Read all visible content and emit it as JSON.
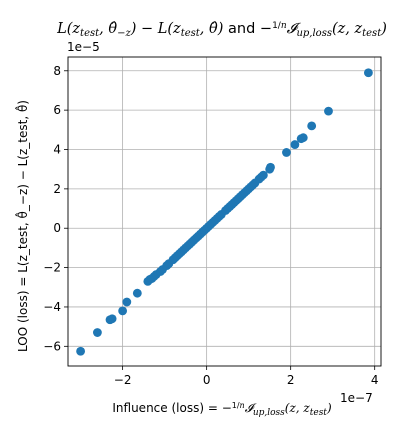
{
  "chart_data": {
    "type": "scatter",
    "title_parts": {
      "lhs": "L(z",
      "sub_test": "test",
      "theta_minus_z": ", θ̂",
      "minus_z_sub": "−z",
      "middle": ") − L(z",
      "theta": ", θ̂)",
      "and": " and ",
      "neg_frac": "−",
      "frac_num": "1",
      "frac_den": "n",
      "influence": "𝓘",
      "inf_sub": "up,loss",
      "tail": "(z, z",
      "close": ")"
    },
    "xlabel_parts": {
      "prefix": "Influence (loss) = −",
      "frac_num": "1",
      "frac_den": "n",
      "influence": "𝓘",
      "inf_sub": "up,loss",
      "args": "(z, z",
      "args_sub": "test",
      "close": ")"
    },
    "ylabel": "LOO (loss) = L(z_test, θ̂_−z) − L(z_test, θ̂)",
    "x_offset_label": "1e−7",
    "y_offset_label": "1e−5",
    "x_scale": 1e-07,
    "y_scale": 1e-05,
    "xlim": [
      -3.3,
      4.15
    ],
    "ylim": [
      -7.0,
      8.7
    ],
    "xticks": [
      -2,
      0,
      2,
      4
    ],
    "xtick_labels": [
      "−2",
      "0",
      "2",
      "4"
    ],
    "yticks": [
      -6,
      -4,
      -2,
      0,
      2,
      4,
      6,
      8
    ],
    "ytick_labels": [
      "−6",
      "−4",
      "−2",
      "0",
      "2",
      "4",
      "6",
      "8"
    ],
    "grid": true,
    "marker_color": "#1f77b4",
    "points_scaled": [
      [
        -3.0,
        -6.25
      ],
      [
        -2.6,
        -5.3
      ],
      [
        -2.3,
        -4.65
      ],
      [
        -2.25,
        -4.6
      ],
      [
        -2.0,
        -4.2
      ],
      [
        -1.9,
        -3.75
      ],
      [
        -1.65,
        -3.3
      ],
      [
        -1.4,
        -2.7
      ],
      [
        -1.35,
        -2.6
      ],
      [
        -1.3,
        -2.55
      ],
      [
        -1.25,
        -2.45
      ],
      [
        -1.2,
        -2.35
      ],
      [
        -1.1,
        -2.2
      ],
      [
        -1.05,
        -2.1
      ],
      [
        -0.95,
        -1.9
      ],
      [
        -0.9,
        -1.8
      ],
      [
        -0.8,
        -1.6
      ],
      [
        -0.75,
        -1.5
      ],
      [
        -0.7,
        -1.4
      ],
      [
        -0.65,
        -1.3
      ],
      [
        -0.6,
        -1.2
      ],
      [
        -0.55,
        -1.1
      ],
      [
        -0.5,
        -1.0
      ],
      [
        -0.45,
        -0.9
      ],
      [
        -0.4,
        -0.8
      ],
      [
        -0.35,
        -0.7
      ],
      [
        -0.3,
        -0.6
      ],
      [
        -0.25,
        -0.5
      ],
      [
        -0.2,
        -0.4
      ],
      [
        -0.15,
        -0.3
      ],
      [
        -0.1,
        -0.2
      ],
      [
        -0.05,
        -0.1
      ],
      [
        0.0,
        0.0
      ],
      [
        0.05,
        0.1
      ],
      [
        0.1,
        0.2
      ],
      [
        0.15,
        0.3
      ],
      [
        0.2,
        0.4
      ],
      [
        0.25,
        0.5
      ],
      [
        0.3,
        0.6
      ],
      [
        0.35,
        0.7
      ],
      [
        0.45,
        0.9
      ],
      [
        0.5,
        1.0
      ],
      [
        0.55,
        1.1
      ],
      [
        0.6,
        1.2
      ],
      [
        0.65,
        1.3
      ],
      [
        0.7,
        1.4
      ],
      [
        0.75,
        1.5
      ],
      [
        0.8,
        1.6
      ],
      [
        0.85,
        1.7
      ],
      [
        0.9,
        1.8
      ],
      [
        0.95,
        1.9
      ],
      [
        1.0,
        2.0
      ],
      [
        1.05,
        2.1
      ],
      [
        1.1,
        2.2
      ],
      [
        1.15,
        2.3
      ],
      [
        1.25,
        2.5
      ],
      [
        1.3,
        2.6
      ],
      [
        1.35,
        2.7
      ],
      [
        1.5,
        3.0
      ],
      [
        1.52,
        3.1
      ],
      [
        1.9,
        3.85
      ],
      [
        2.1,
        4.25
      ],
      [
        2.25,
        4.55
      ],
      [
        2.3,
        4.6
      ],
      [
        2.5,
        5.2
      ],
      [
        2.9,
        5.95
      ],
      [
        3.85,
        7.9
      ]
    ]
  }
}
